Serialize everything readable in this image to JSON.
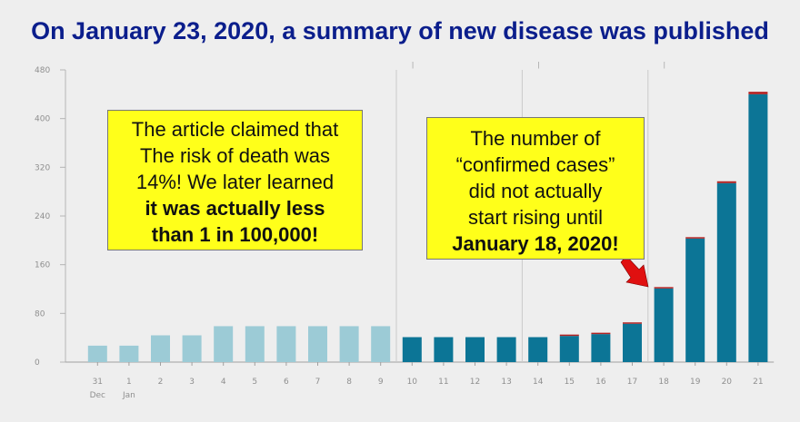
{
  "title": "On January 23, 2020, a summary of new disease was published",
  "callouts": {
    "left": {
      "line1": "The article claimed that",
      "line2": "The risk of death was",
      "line3": "14%! We later learned",
      "line4": "it was actually less",
      "line5": "than 1 in 100,000!"
    },
    "right": {
      "line1": "The number of",
      "line2": "“confirmed cases”",
      "line3": "did not actually",
      "line4": "start rising until",
      "line5": "January 18, 2020!"
    }
  },
  "colors": {
    "light_bar": "#9ccbd6",
    "dark_bar": "#0c7596",
    "new_cases_cap": "#b22222",
    "callout_bg": "#ffff1a",
    "title": "#0b1e8c",
    "arrow": "#e01010"
  },
  "chart_data": {
    "type": "bar",
    "categories": [
      "31",
      "1",
      "2",
      "3",
      "4",
      "5",
      "6",
      "7",
      "8",
      "9",
      "10",
      "11",
      "12",
      "13",
      "14",
      "15",
      "16",
      "17",
      "18",
      "19",
      "20",
      "21"
    ],
    "category_sublabels": [
      "Dec",
      "Jan",
      "",
      "",
      "",
      "",
      "",
      "",
      "",
      "",
      "",
      "",
      "",
      "",
      "",
      "",
      "",
      "",
      "",
      "",
      "",
      ""
    ],
    "values": [
      27,
      27,
      44,
      44,
      59,
      59,
      59,
      59,
      59,
      59,
      41,
      41,
      41,
      41,
      41,
      43,
      46,
      63,
      121,
      203,
      294,
      440
    ],
    "highlight_values": [
      0,
      0,
      0,
      0,
      0,
      0,
      0,
      0,
      0,
      0,
      0,
      0,
      0,
      0,
      0,
      1,
      1,
      2,
      1,
      2,
      3,
      4
    ],
    "shade": [
      "light",
      "light",
      "light",
      "light",
      "light",
      "light",
      "light",
      "light",
      "light",
      "light",
      "dark",
      "dark",
      "dark",
      "dark",
      "dark",
      "dark",
      "dark",
      "dark",
      "dark",
      "dark",
      "dark",
      "dark"
    ],
    "yticks": [
      0,
      80,
      160,
      240,
      320,
      400,
      480
    ],
    "ylim": [
      0,
      480
    ],
    "vertical_markers_after_category": [
      "9",
      "13",
      "17"
    ],
    "title": "",
    "xlabel": "",
    "ylabel": "",
    "grid": false
  }
}
